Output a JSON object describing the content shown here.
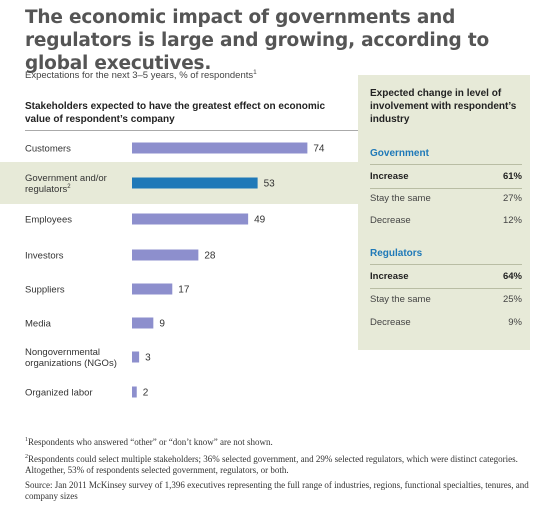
{
  "title": "The economic impact of governments and regulators is large and growing, according to global executives.",
  "subtitle": "Expectations for the next 3–5 years, % of respondents",
  "subtitle_note": "1",
  "colors": {
    "bar": "#8d8fcd",
    "bar_highlight": "#1f79b8",
    "panel_bg": "#e7ead8",
    "section_heading": "#1f79b8"
  },
  "chart_data": {
    "type": "bar",
    "orientation": "horizontal",
    "title": "Stakeholders expected to have the greatest effect on economic value of respondent’s company",
    "categories": [
      "Customers",
      "Government and/or regulators",
      "Employees",
      "Investors",
      "Suppliers",
      "Media",
      "Nongovernmental organizations (NGOs)",
      "Organized labor"
    ],
    "category_lines": [
      [
        "Customers"
      ],
      [
        "Government and/or",
        "regulators"
      ],
      [
        "Employees"
      ],
      [
        "Investors"
      ],
      [
        "Suppliers"
      ],
      [
        "Media"
      ],
      [
        "Nongovernmental",
        "organizations (NGOs)"
      ],
      [
        "Organized labor"
      ]
    ],
    "category_notes": [
      "",
      "2",
      "",
      "",
      "",
      "",
      "",
      ""
    ],
    "values": [
      74,
      53,
      49,
      28,
      17,
      9,
      3,
      2
    ],
    "highlight_index": 1,
    "xlim": [
      0,
      80
    ],
    "grid": false,
    "data_labels": true
  },
  "right_panel": {
    "heading": "Expected change in level of involvement with respondent’s industry",
    "sections": [
      {
        "name": "Government",
        "rows": [
          {
            "label": "Increase",
            "value": "61%",
            "bold": true
          },
          {
            "label": "Stay the same",
            "value": "27%",
            "bold": false
          },
          {
            "label": "Decrease",
            "value": "12%",
            "bold": false
          }
        ]
      },
      {
        "name": "Regulators",
        "rows": [
          {
            "label": "Increase",
            "value": "64%",
            "bold": true
          },
          {
            "label": "Stay the same",
            "value": "25%",
            "bold": false
          },
          {
            "label": "Decrease",
            "value": "9%",
            "bold": false
          }
        ]
      }
    ]
  },
  "footnotes": {
    "note1_mark": "1",
    "note1": "Respondents who answered “other” or “don’t know” are not shown.",
    "note2_mark": "2",
    "note2": "Respondents could select multiple stakeholders; 36% selected government, and 29% selected regulators, which were distinct categories. Altogether, 53% of respondents selected government, regulators, or both.",
    "source": "Source: Jan 2011 McKinsey survey of 1,396 executives representing the full range of industries, regions, functional specialties, tenures, and company sizes"
  }
}
